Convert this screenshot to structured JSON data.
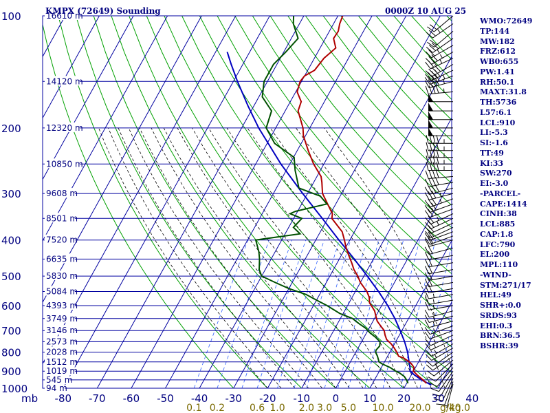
{
  "header": {
    "title": "KMPX (72649) Sounding",
    "time": "0000Z 10 AUG 25"
  },
  "indices": [
    "WMO:72649",
    "TP:144",
    "MW:182",
    "FRZ:612",
    "WB0:655",
    "PW:1.41",
    "RH:50.1",
    "MAXT:31.8",
    "TH:5736",
    "L57:6.1",
    "LCL:910",
    "LI:-5.3",
    "SI:-1.6",
    "TT:49",
    "KI:33",
    "SW:270",
    "EI:-3.0",
    "-PARCEL-",
    "CAPE:1414",
    "CINH:38",
    "LCL:885",
    "CAP:1.8",
    "LFC:790",
    "EL:200",
    "MPL:110",
    "-WIND-",
    "STM:271/17",
    "HEL:49",
    "SHR+:0.0",
    "SRDS:93",
    "EHI:0.3",
    "BRN:36.5",
    "BSHR:39"
  ],
  "colors": {
    "grid": "#0000a0",
    "isotherm": "#0000a0",
    "dry_adiabat": "#00a000",
    "moist_adiabat": "#000000",
    "mixing_ratio": "#3060ff",
    "temperature": "#b00000",
    "dewpoint": "#005000",
    "parcel": "#0000c0",
    "text": "#000080",
    "mix_label": "#7a6a00"
  },
  "chart_data": {
    "type": "skew-t",
    "pressure_axis_unit": "mb",
    "pressure_levels": [
      100,
      200,
      300,
      400,
      500,
      600,
      700,
      800,
      900,
      1000
    ],
    "pressure_range": [
      100,
      1000
    ],
    "temperature_range": [
      -80,
      40
    ],
    "temperature_ticks": [
      -80,
      -70,
      -60,
      -50,
      -40,
      -30,
      -20,
      -10,
      0,
      10,
      20,
      30,
      40
    ],
    "mixing_ratio_unit": "g/kg",
    "mixing_ratio_labels": [
      "0.1",
      "0.2",
      "0.6",
      "1.0",
      "2.0",
      "3.0",
      "5.0",
      "10.0",
      "20.0",
      "40.0"
    ],
    "heights": [
      {
        "p": 100,
        "label": "16610 m"
      },
      {
        "p": 150,
        "label": "14120 m"
      },
      {
        "p": 200,
        "label": "12320 m"
      },
      {
        "p": 250,
        "label": "10850 m"
      },
      {
        "p": 300,
        "label": "9608 m"
      },
      {
        "p": 350,
        "label": "8501 m"
      },
      {
        "p": 400,
        "label": "7520 m"
      },
      {
        "p": 450,
        "label": "6635 m"
      },
      {
        "p": 500,
        "label": "5830 m"
      },
      {
        "p": 550,
        "label": "5084 m"
      },
      {
        "p": 600,
        "label": "4393 m"
      },
      {
        "p": 650,
        "label": "3749 m"
      },
      {
        "p": 700,
        "label": "3146 m"
      },
      {
        "p": 750,
        "label": "2573 m"
      },
      {
        "p": 800,
        "label": "2028 m"
      },
      {
        "p": 850,
        "label": "1512 m"
      },
      {
        "p": 900,
        "label": "1019 m"
      },
      {
        "p": 950,
        "label": "545 m"
      },
      {
        "p": 1000,
        "label": "94 m"
      }
    ],
    "temperature_profile": [
      [
        970,
        25.8
      ],
      [
        950,
        24.2
      ],
      [
        925,
        22.0
      ],
      [
        900,
        20.0
      ],
      [
        880,
        19.6
      ],
      [
        860,
        18.2
      ],
      [
        850,
        17.3
      ],
      [
        830,
        15.0
      ],
      [
        820,
        13.2
      ],
      [
        800,
        12.0
      ],
      [
        780,
        10.6
      ],
      [
        760,
        9.0
      ],
      [
        740,
        7.0
      ],
      [
        720,
        5.8
      ],
      [
        700,
        4.8
      ],
      [
        680,
        3.0
      ],
      [
        660,
        1.2
      ],
      [
        640,
        0.0
      ],
      [
        620,
        -1.2
      ],
      [
        600,
        -3.0
      ],
      [
        590,
        -4.0
      ],
      [
        570,
        -5.0
      ],
      [
        550,
        -6.6
      ],
      [
        520,
        -10.0
      ],
      [
        500,
        -11.8
      ],
      [
        480,
        -14.0
      ],
      [
        460,
        -15.8
      ],
      [
        440,
        -17.8
      ],
      [
        420,
        -19.8
      ],
      [
        400,
        -21.6
      ],
      [
        380,
        -23.6
      ],
      [
        360,
        -27.0
      ],
      [
        350,
        -28.8
      ],
      [
        340,
        -29.4
      ],
      [
        320,
        -32.4
      ],
      [
        300,
        -35.6
      ],
      [
        280,
        -37.6
      ],
      [
        270,
        -38.8
      ],
      [
        250,
        -43.0
      ],
      [
        230,
        -46.8
      ],
      [
        210,
        -50.6
      ],
      [
        200,
        -52.0
      ],
      [
        180,
        -56.2
      ],
      [
        170,
        -56.8
      ],
      [
        160,
        -59.6
      ],
      [
        150,
        -60.4
      ],
      [
        145,
        -60.0
      ],
      [
        140,
        -58.0
      ],
      [
        130,
        -57.2
      ],
      [
        122,
        -55.4
      ],
      [
        115,
        -57.6
      ],
      [
        110,
        -57.4
      ],
      [
        105,
        -58.2
      ],
      [
        100,
        -58.6
      ]
    ],
    "dewpoint_profile": [
      [
        970,
        20.4
      ],
      [
        950,
        19.4
      ],
      [
        930,
        18.2
      ],
      [
        910,
        16.2
      ],
      [
        900,
        14.8
      ],
      [
        880,
        12.6
      ],
      [
        860,
        9.6
      ],
      [
        850,
        8.4
      ],
      [
        820,
        7.0
      ],
      [
        800,
        5.8
      ],
      [
        790,
        5.6
      ],
      [
        770,
        6.0
      ],
      [
        750,
        5.4
      ],
      [
        730,
        3.4
      ],
      [
        710,
        1.0
      ],
      [
        690,
        -1.0
      ],
      [
        670,
        -3.8
      ],
      [
        650,
        -6.4
      ],
      [
        630,
        -11.0
      ],
      [
        600,
        -16.0
      ],
      [
        580,
        -20.0
      ],
      [
        560,
        -24.0
      ],
      [
        540,
        -30.0
      ],
      [
        520,
        -35.0
      ],
      [
        500,
        -40.0
      ],
      [
        480,
        -41.8
      ],
      [
        450,
        -43.4
      ],
      [
        430,
        -44.8
      ],
      [
        400,
        -47.6
      ],
      [
        385,
        -35.6
      ],
      [
        370,
        -38.6
      ],
      [
        350,
        -37.6
      ],
      [
        340,
        -41.8
      ],
      [
        335,
        -40.6
      ],
      [
        320,
        -32.6
      ],
      [
        305,
        -35.8
      ],
      [
        290,
        -43.4
      ],
      [
        260,
        -47.4
      ],
      [
        240,
        -49.8
      ],
      [
        220,
        -57.8
      ],
      [
        200,
        -62.8
      ],
      [
        180,
        -64.0
      ],
      [
        165,
        -69.0
      ],
      [
        150,
        -71.0
      ],
      [
        135,
        -71.0
      ],
      [
        125,
        -69.4
      ],
      [
        115,
        -68.0
      ],
      [
        105,
        -71.8
      ],
      [
        100,
        -73.0
      ]
    ],
    "parcel_profile": [
      [
        980,
        27.5
      ],
      [
        950,
        23.8
      ],
      [
        920,
        20.8
      ],
      [
        900,
        19.0
      ],
      [
        885,
        18.6
      ],
      [
        860,
        17.6
      ],
      [
        800,
        15.2
      ],
      [
        750,
        12.6
      ],
      [
        700,
        9.5
      ],
      [
        650,
        6.0
      ],
      [
        600,
        1.8
      ],
      [
        550,
        -3.2
      ],
      [
        500,
        -9.0
      ],
      [
        450,
        -15.6
      ],
      [
        400,
        -23.2
      ],
      [
        350,
        -31.6
      ],
      [
        300,
        -41.4
      ],
      [
        250,
        -52.6
      ],
      [
        200,
        -65.0
      ],
      [
        175,
        -71.6
      ],
      [
        150,
        -78.8
      ],
      [
        135,
        -83.4
      ],
      [
        125,
        -86.6
      ]
    ],
    "wind_barbs": [
      {
        "p": 100,
        "dir": 230,
        "spd": 20
      },
      {
        "p": 105,
        "dir": 235,
        "spd": 25
      },
      {
        "p": 110,
        "dir": 230,
        "spd": 20
      },
      {
        "p": 115,
        "dir": 235,
        "spd": 30
      },
      {
        "p": 120,
        "dir": 240,
        "spd": 25
      },
      {
        "p": 125,
        "dir": 240,
        "spd": 35
      },
      {
        "p": 130,
        "dir": 245,
        "spd": 35
      },
      {
        "p": 135,
        "dir": 240,
        "spd": 40
      },
      {
        "p": 140,
        "dir": 245,
        "spd": 40
      },
      {
        "p": 145,
        "dir": 250,
        "spd": 45
      },
      {
        "p": 150,
        "dir": 255,
        "spd": 45
      },
      {
        "p": 160,
        "dir": 265,
        "spd": 45
      },
      {
        "p": 170,
        "dir": 270,
        "spd": 50
      },
      {
        "p": 180,
        "dir": 270,
        "spd": 50
      },
      {
        "p": 190,
        "dir": 270,
        "spd": 50
      },
      {
        "p": 200,
        "dir": 270,
        "spd": 50
      },
      {
        "p": 210,
        "dir": 270,
        "spd": 50
      },
      {
        "p": 220,
        "dir": 270,
        "spd": 45
      },
      {
        "p": 230,
        "dir": 270,
        "spd": 45
      },
      {
        "p": 240,
        "dir": 270,
        "spd": 45
      },
      {
        "p": 250,
        "dir": 270,
        "spd": 45
      },
      {
        "p": 260,
        "dir": 270,
        "spd": 45
      },
      {
        "p": 270,
        "dir": 265,
        "spd": 40
      },
      {
        "p": 280,
        "dir": 260,
        "spd": 40
      },
      {
        "p": 290,
        "dir": 255,
        "spd": 40
      },
      {
        "p": 300,
        "dir": 255,
        "spd": 35
      },
      {
        "p": 310,
        "dir": 250,
        "spd": 35
      },
      {
        "p": 320,
        "dir": 250,
        "spd": 30
      },
      {
        "p": 330,
        "dir": 250,
        "spd": 30
      },
      {
        "p": 340,
        "dir": 245,
        "spd": 25
      },
      {
        "p": 350,
        "dir": 245,
        "spd": 25
      },
      {
        "p": 360,
        "dir": 245,
        "spd": 20
      },
      {
        "p": 370,
        "dir": 245,
        "spd": 20
      },
      {
        "p": 380,
        "dir": 250,
        "spd": 20
      },
      {
        "p": 390,
        "dir": 250,
        "spd": 20
      },
      {
        "p": 400,
        "dir": 255,
        "spd": 20
      },
      {
        "p": 420,
        "dir": 255,
        "spd": 20
      },
      {
        "p": 440,
        "dir": 260,
        "spd": 20
      },
      {
        "p": 460,
        "dir": 260,
        "spd": 20
      },
      {
        "p": 480,
        "dir": 260,
        "spd": 20
      },
      {
        "p": 500,
        "dir": 260,
        "spd": 20
      },
      {
        "p": 520,
        "dir": 260,
        "spd": 20
      },
      {
        "p": 540,
        "dir": 260,
        "spd": 20
      },
      {
        "p": 560,
        "dir": 260,
        "spd": 15
      },
      {
        "p": 580,
        "dir": 260,
        "spd": 15
      },
      {
        "p": 600,
        "dir": 260,
        "spd": 15
      },
      {
        "p": 620,
        "dir": 255,
        "spd": 15
      },
      {
        "p": 640,
        "dir": 255,
        "spd": 15
      },
      {
        "p": 660,
        "dir": 255,
        "spd": 15
      },
      {
        "p": 680,
        "dir": 250,
        "spd": 15
      },
      {
        "p": 700,
        "dir": 250,
        "spd": 15
      },
      {
        "p": 720,
        "dir": 245,
        "spd": 15
      },
      {
        "p": 740,
        "dir": 245,
        "spd": 15
      },
      {
        "p": 760,
        "dir": 240,
        "spd": 15
      },
      {
        "p": 780,
        "dir": 240,
        "spd": 15
      },
      {
        "p": 800,
        "dir": 235,
        "spd": 15
      },
      {
        "p": 820,
        "dir": 235,
        "spd": 15
      },
      {
        "p": 840,
        "dir": 230,
        "spd": 10
      },
      {
        "p": 860,
        "dir": 225,
        "spd": 10
      },
      {
        "p": 880,
        "dir": 220,
        "spd": 10
      },
      {
        "p": 900,
        "dir": 215,
        "spd": 10
      },
      {
        "p": 920,
        "dir": 210,
        "spd": 10
      },
      {
        "p": 940,
        "dir": 205,
        "spd": 10
      },
      {
        "p": 960,
        "dir": 200,
        "spd": 10
      },
      {
        "p": 975,
        "dir": 195,
        "spd": 5
      }
    ]
  }
}
